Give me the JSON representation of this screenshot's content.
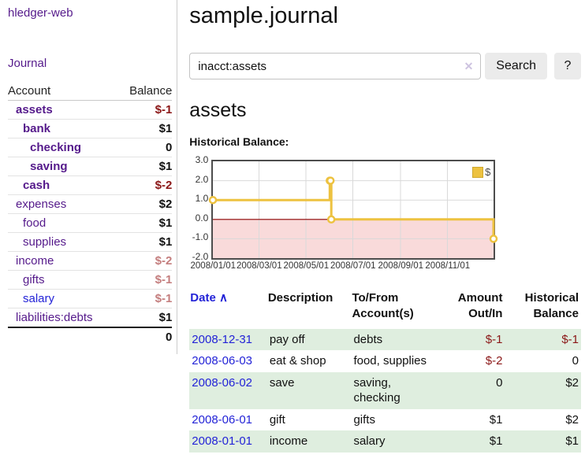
{
  "sidebar": {
    "brand": "hledger-web",
    "journal_link": "Journal",
    "accounts": {
      "headers": {
        "account": "Account",
        "balance": "Balance"
      },
      "rows": [
        {
          "name": "assets",
          "depth": "d1",
          "name_class": "bold",
          "balance": "$-1",
          "balance_class": "negs"
        },
        {
          "name": "bank",
          "depth": "d2",
          "name_class": "bold",
          "balance": "$1",
          "balance_class": ""
        },
        {
          "name": "checking",
          "depth": "d3",
          "name_class": "bold",
          "balance": "0",
          "balance_class": ""
        },
        {
          "name": "saving",
          "depth": "d3",
          "name_class": "bold",
          "balance": "$1",
          "balance_class": ""
        },
        {
          "name": "cash",
          "depth": "d2",
          "name_class": "bold",
          "balance": "$-2",
          "balance_class": "negs"
        },
        {
          "name": "expenses",
          "depth": "d1",
          "name_class": "",
          "balance": "$2",
          "balance_class": ""
        },
        {
          "name": "food",
          "depth": "d2",
          "name_class": "",
          "balance": "$1",
          "balance_class": ""
        },
        {
          "name": "supplies",
          "depth": "d2",
          "name_class": "",
          "balance": "$1",
          "balance_class": ""
        },
        {
          "name": "income",
          "depth": "d1",
          "name_class": "",
          "balance": "$-2",
          "balance_class": "negsoft"
        },
        {
          "name": "gifts",
          "depth": "d2",
          "name_class": "",
          "balance": "$-1",
          "balance_class": "negsoft"
        },
        {
          "name": "salary",
          "depth": "d2",
          "name_class": "blue",
          "balance": "$-1",
          "balance_class": "negsoft"
        },
        {
          "name": "liabilities:debts",
          "depth": "d1",
          "name_class": "",
          "balance": "$1",
          "balance_class": ""
        }
      ],
      "total": "0"
    }
  },
  "main": {
    "title": "sample.journal",
    "search": {
      "value": "inacct:assets",
      "clear_icon": "✕",
      "button": "Search",
      "help_button": "?"
    },
    "account_heading": "assets",
    "chart_label": "Historical Balance:",
    "register": {
      "headers": {
        "date": "Date",
        "sort_icon": "∧",
        "description": "Description",
        "accounts": "To/From Account(s)",
        "amount": "Amount Out/In",
        "balance": "Historical Balance"
      },
      "rows": [
        {
          "date": "2008-12-31",
          "description": "pay off",
          "accounts": "debts",
          "amount": "$-1",
          "amount_class": "neg",
          "balance": "$-1",
          "balance_class": "neg"
        },
        {
          "date": "2008-06-03",
          "description": "eat & shop",
          "accounts": "food, supplies",
          "amount": "$-2",
          "amount_class": "neg",
          "balance": "0",
          "balance_class": ""
        },
        {
          "date": "2008-06-02",
          "description": "save",
          "accounts": "saving,\nchecking",
          "amount": "0",
          "amount_class": "",
          "balance": "$2",
          "balance_class": ""
        },
        {
          "date": "2008-06-01",
          "description": "gift",
          "accounts": "gifts",
          "amount": "$1",
          "amount_class": "",
          "balance": "$2",
          "balance_class": ""
        },
        {
          "date": "2008-01-01",
          "description": "income",
          "accounts": "salary",
          "amount": "$1",
          "amount_class": "",
          "balance": "$1",
          "balance_class": ""
        }
      ]
    }
  },
  "chart_data": {
    "type": "line",
    "title": "Historical Balance",
    "series": [
      {
        "name": "$",
        "color": "#EDC240",
        "step": true,
        "points": [
          [
            "2008-01-01",
            1
          ],
          [
            "2008-06-01",
            2
          ],
          [
            "2008-06-02",
            2
          ],
          [
            "2008-06-03",
            0
          ],
          [
            "2008-12-31",
            -1
          ]
        ]
      }
    ],
    "xlim": [
      "2008-01-01",
      "2008-12-31"
    ],
    "ylim": [
      -2,
      3
    ],
    "yticks": [
      "3.0",
      "2.0",
      "1.0",
      "0.0",
      "-1.0",
      "-2.0"
    ],
    "xticks": [
      "2008/01/01",
      "2008/03/01",
      "2008/05/01",
      "2008/07/01",
      "2008/09/01",
      "2008/11/01"
    ],
    "grid": true,
    "legend_position": "top-right",
    "negative_region_fill": "#f9dada",
    "zero_line_color": "#8b0000",
    "gridline_color": "#d9d9d9"
  },
  "colors": {
    "link_purple": "#551A8B",
    "link_blue": "#2323d7",
    "negative_strong": "#8b1717",
    "negative_soft": "#c47e7e",
    "row_stripe_green": "#dfeedf",
    "series_yellow": "#EDC240"
  }
}
